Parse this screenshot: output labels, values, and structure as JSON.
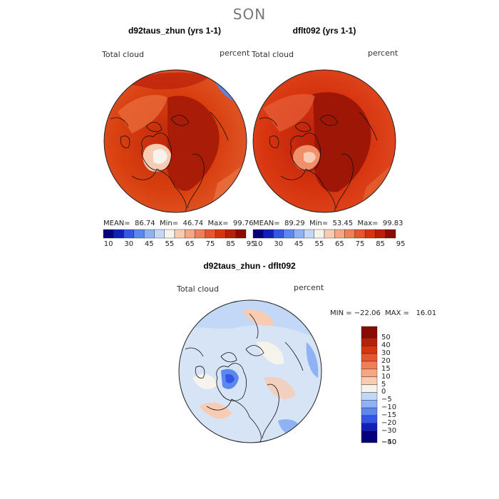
{
  "season": "SON",
  "panels": [
    {
      "title": "d92taus_zhun (yrs 1-1)",
      "var_label": "Total cloud",
      "unit": "percent",
      "stats": "MEAN=  86.74  Min=  46.74  Max=  99.76"
    },
    {
      "title": "dflt092 (yrs 1-1)",
      "var_label": "Total cloud",
      "unit": "percent",
      "stats": "MEAN=  89.29  Min=  53.45  Max=  99.83"
    }
  ],
  "diff": {
    "title": "d92taus_zhun - dflt092",
    "var_label": "Total cloud",
    "unit": "percent",
    "stats": "MIN = −22.06  MAX =   16.01"
  },
  "colorbar_top": {
    "colors": [
      "#07007d",
      "#1020b8",
      "#3356e6",
      "#5b87f0",
      "#8fb2f4",
      "#c2d8f6",
      "#f5f3ec",
      "#f8cbb3",
      "#f5a682",
      "#f07e58",
      "#e8542e",
      "#d7350f",
      "#b9200a",
      "#8a0a04"
    ],
    "ticks": [
      "10",
      "30",
      "45",
      "55",
      "65",
      "75",
      "85",
      "95"
    ]
  },
  "colorbar_diff": {
    "colors": [
      "#8a0a04",
      "#b9200a",
      "#d7350f",
      "#e8542e",
      "#f07e58",
      "#f5a682",
      "#f8cbb3",
      "#f5f3ec",
      "#c2d8f6",
      "#8fb2f4",
      "#5b87f0",
      "#3356e6",
      "#1020b8",
      "#07007d"
    ],
    "ticks": [
      "50",
      "40",
      "30",
      "20",
      "15",
      "10",
      "5",
      "0",
      "−5",
      "−10",
      "−15",
      "−20",
      "−30",
      "−40",
      "−50"
    ]
  }
}
